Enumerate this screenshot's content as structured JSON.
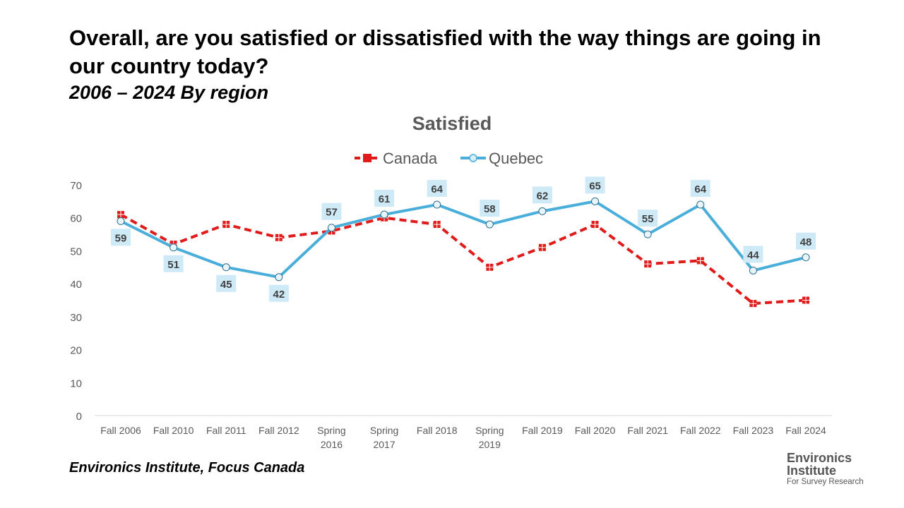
{
  "header": {
    "title": "Overall, are you satisfied or dissatisfied with the way things are going in our country today?",
    "subtitle": "2006 – 2024  By region"
  },
  "footer": {
    "source": "Environics Institute, Focus Canada",
    "logo_line1": "Environics",
    "logo_line2": "Institute",
    "logo_line3": "For Survey Research"
  },
  "chart_data": {
    "type": "line",
    "title": "Satisfied",
    "xlabel": "",
    "ylabel": "",
    "ylim": [
      0,
      70
    ],
    "yticks": [
      0,
      10,
      20,
      30,
      40,
      50,
      60,
      70
    ],
    "grid": false,
    "legend": "top-center",
    "categories": [
      "Fall 2006",
      "Fall 2010",
      "Fall 2011",
      "Fall 2012",
      "Spring 2016",
      "Spring 2017",
      "Fall 2018",
      "Spring 2019",
      "Fall 2019",
      "Fall 2020",
      "Fall 2021",
      "Fall 2022",
      "Fall 2023",
      "Fall 2024"
    ],
    "series": [
      {
        "name": "Canada",
        "color": "#e01b1b",
        "style": "dashed",
        "values": [
          61,
          52,
          58,
          54,
          56,
          60,
          58,
          45,
          51,
          58,
          46,
          47,
          34,
          35
        ],
        "labels_shown": false
      },
      {
        "name": "Quebec",
        "color": "#4aaedb",
        "style": "solid",
        "values": [
          59,
          51,
          45,
          42,
          57,
          61,
          64,
          58,
          62,
          65,
          55,
          64,
          44,
          48
        ],
        "labels_shown": true
      }
    ]
  }
}
